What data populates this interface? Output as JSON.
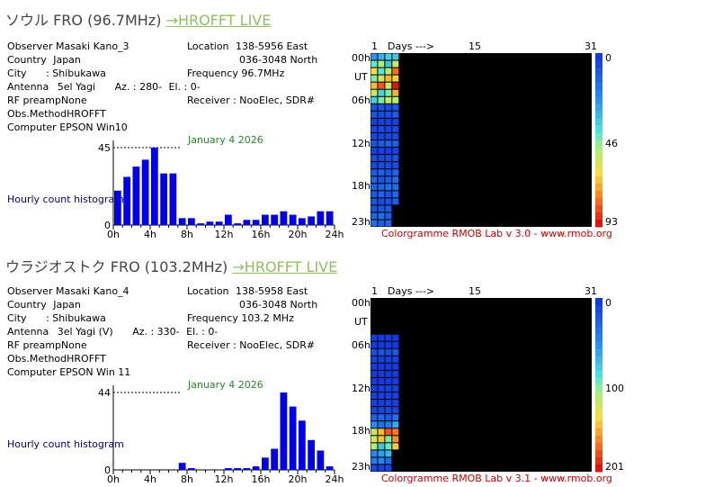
{
  "sections": [
    {
      "title": "ソウル FRO (96.7MHz)",
      "link": "→HROFFT LIVE",
      "observer_label": "Observer",
      "observer": "Masaki Kano_3",
      "country_label": "Country",
      "country": "Japan",
      "city_label": "City",
      "city": ":  Shibukawa",
      "antenna_label": "Antenna",
      "antenna": "5el Yagi",
      "az_label": "Az. : 280-",
      "el_label": "El. : 0-",
      "rf_label": "RF preamp",
      "rf": "None",
      "obs_label": "Obs.Method",
      "obs": "HROFFT",
      "computer_label": "Computer",
      "computer": "EPSON Win10",
      "location_label": "Location",
      "location1": "138-5956 East",
      "location2": "036-3048 North",
      "frequency_label": "Frequency",
      "frequency": "96.7MHz",
      "receiver_label": "Receiver : NooElec, SDR#",
      "hist_label": "Hourly count histogram",
      "date": "January 4 2026",
      "colorgramme_credit": "Colorgramme RMOB Lab v 3.0 - www.rmob.org",
      "day_axis": {
        "start": "1",
        "days": "Days --->",
        "mid": "15",
        "end": "31"
      },
      "hour_axis": [
        "00h",
        "UT",
        "06h",
        "12h",
        "18h",
        "23h"
      ],
      "scale_labels": [
        "0",
        "46",
        "93"
      ],
      "chart_data": {
        "type": "bar",
        "categories": [
          "0",
          "1",
          "2",
          "3",
          "4",
          "5",
          "6",
          "7",
          "8",
          "9",
          "10",
          "11",
          "12",
          "13",
          "14",
          "15",
          "16",
          "17",
          "18",
          "19",
          "20",
          "21",
          "22",
          "23"
        ],
        "values": [
          20,
          28,
          34,
          38,
          45,
          30,
          30,
          4,
          4,
          1,
          2,
          2,
          6,
          1,
          3,
          3,
          6,
          6,
          8,
          6,
          4,
          5,
          8,
          8
        ],
        "ylim": [
          0,
          45
        ],
        "yticks": [
          "0",
          "45"
        ],
        "xticks": [
          "0h",
          "4h",
          "8h",
          "12h",
          "16h",
          "20h",
          "24h"
        ]
      }
    },
    {
      "title": "ウラジオストク FRO (103.2MHz)",
      "link": "→HROFFT LIVE",
      "observer_label": "Observer",
      "observer": "Masaki Kano_4",
      "country_label": "Country",
      "country": "Japan",
      "city_label": "City",
      "city": ":  Shibukawa",
      "antenna_label": "Antenna",
      "antenna": "3el Yagi (V)",
      "az_label": "Az. : 330-",
      "el_label": "El. : 0-",
      "rf_label": "RF preamp",
      "rf": "None",
      "obs_label": "Obs.Method",
      "obs": "HROFFT",
      "computer_label": "Computer",
      "computer": "EPSON Win 11",
      "location_label": "Location",
      "location1": "138-5958 East",
      "location2": "036-3048 North",
      "frequency_label": "Frequency",
      "frequency": "103.2 MHz",
      "receiver_label": "Receiver : NooElec, SDR#",
      "hist_label": "Hourly count histogram",
      "date": "January 4 2026",
      "colorgramme_credit": "Colorgramme RMOB Lab v 3.1 - www.rmob.org",
      "day_axis": {
        "start": "1",
        "days": "Days --->",
        "mid": "15",
        "end": "31"
      },
      "hour_axis": [
        "00h",
        "UT",
        "06h",
        "12h",
        "18h",
        "23h"
      ],
      "scale_labels": [
        "0",
        "100",
        "201"
      ],
      "chart_data": {
        "type": "bar",
        "categories": [
          "0",
          "1",
          "2",
          "3",
          "4",
          "5",
          "6",
          "7",
          "8",
          "9",
          "10",
          "11",
          "12",
          "13",
          "14",
          "15",
          "16",
          "17",
          "18",
          "19",
          "20",
          "21",
          "22",
          "23"
        ],
        "values": [
          0,
          0,
          0,
          0,
          0,
          0,
          0,
          4,
          1,
          0,
          0,
          0,
          1,
          1,
          1,
          2,
          7,
          12,
          44,
          36,
          28,
          17,
          11,
          2
        ],
        "ylim": [
          0,
          44
        ],
        "yticks": [
          "0",
          "44"
        ],
        "xticks": [
          "0h",
          "4h",
          "8h",
          "12h",
          "16h",
          "20h",
          "24h"
        ]
      }
    }
  ]
}
